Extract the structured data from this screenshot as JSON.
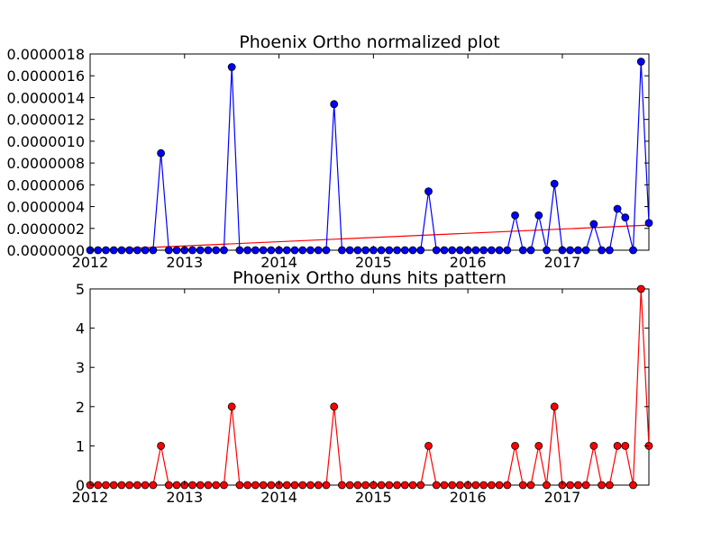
{
  "chart_data": [
    {
      "type": "line",
      "title": "Phoenix Ortho normalized plot",
      "xlabel": "",
      "ylabel": "",
      "x_ticks": [
        "2012",
        "2013",
        "2014",
        "2015",
        "2016",
        "2017"
      ],
      "xlim": [
        "2012-01",
        "2017-12"
      ],
      "ylim": [
        0,
        1.8e-06
      ],
      "y_ticks": [
        "0.0000000",
        "0.0000002",
        "0.0000004",
        "0.0000006",
        "0.0000008",
        "0.0000010",
        "0.0000012",
        "0.0000014",
        "0.0000016",
        "0.0000018"
      ],
      "grid": false,
      "colors": {
        "series": "#0000ff",
        "trend": "#ff0000"
      },
      "series": [
        {
          "x": [
            "2012-01",
            "2012-02",
            "2012-03",
            "2012-04",
            "2012-05",
            "2012-06",
            "2012-07",
            "2012-08",
            "2012-09",
            "2012-10",
            "2012-11",
            "2012-12",
            "2013-01",
            "2013-02",
            "2013-03",
            "2013-04",
            "2013-05",
            "2013-06",
            "2013-07",
            "2013-08",
            "2013-09",
            "2013-10",
            "2013-11",
            "2013-12",
            "2014-01",
            "2014-02",
            "2014-03",
            "2014-04",
            "2014-05",
            "2014-06",
            "2014-07",
            "2014-08",
            "2014-09",
            "2014-10",
            "2014-11",
            "2014-12",
            "2015-01",
            "2015-02",
            "2015-03",
            "2015-04",
            "2015-05",
            "2015-06",
            "2015-07",
            "2015-08",
            "2015-09",
            "2015-10",
            "2015-11",
            "2015-12",
            "2016-01",
            "2016-02",
            "2016-03",
            "2016-04",
            "2016-05",
            "2016-06",
            "2016-07",
            "2016-08",
            "2016-09",
            "2016-10",
            "2016-11",
            "2016-12",
            "2017-01",
            "2017-02",
            "2017-03",
            "2017-04",
            "2017-05",
            "2017-06",
            "2017-07",
            "2017-08",
            "2017-09",
            "2017-10",
            "2017-11",
            "2017-12"
          ],
          "values": [
            0,
            0,
            0,
            0,
            0,
            0,
            0,
            0,
            0,
            8.9e-07,
            0,
            0,
            0,
            0,
            0,
            0,
            0,
            0,
            1.68e-06,
            0,
            0,
            0,
            0,
            0,
            0,
            0,
            0,
            0,
            0,
            0,
            0,
            1.34e-06,
            0,
            0,
            0,
            0,
            0,
            0,
            0,
            0,
            0,
            0,
            0,
            5.4e-07,
            0,
            0,
            0,
            0,
            0,
            0,
            0,
            0,
            0,
            0,
            3.2e-07,
            0,
            0,
            3.2e-07,
            0,
            6.1e-07,
            0,
            0,
            0,
            0,
            2.4e-07,
            0,
            0,
            3.8e-07,
            3e-07,
            0,
            1.73e-06,
            2.5e-07
          ]
        }
      ],
      "trend": {
        "x": [
          "2012-01",
          "2017-12"
        ],
        "values": [
          0,
          2.3e-07
        ]
      }
    },
    {
      "type": "line",
      "title": "Phoenix Ortho duns hits pattern",
      "xlabel": "",
      "ylabel": "",
      "x_ticks": [
        "2012",
        "2013",
        "2014",
        "2015",
        "2016",
        "2017"
      ],
      "xlim": [
        "2012-01",
        "2017-12"
      ],
      "ylim": [
        0,
        5
      ],
      "y_ticks": [
        "0",
        "1",
        "2",
        "3",
        "4",
        "5"
      ],
      "grid": false,
      "colors": {
        "series": "#ff0000"
      },
      "series": [
        {
          "x": [
            "2012-01",
            "2012-02",
            "2012-03",
            "2012-04",
            "2012-05",
            "2012-06",
            "2012-07",
            "2012-08",
            "2012-09",
            "2012-10",
            "2012-11",
            "2012-12",
            "2013-01",
            "2013-02",
            "2013-03",
            "2013-04",
            "2013-05",
            "2013-06",
            "2013-07",
            "2013-08",
            "2013-09",
            "2013-10",
            "2013-11",
            "2013-12",
            "2014-01",
            "2014-02",
            "2014-03",
            "2014-04",
            "2014-05",
            "2014-06",
            "2014-07",
            "2014-08",
            "2014-09",
            "2014-10",
            "2014-11",
            "2014-12",
            "2015-01",
            "2015-02",
            "2015-03",
            "2015-04",
            "2015-05",
            "2015-06",
            "2015-07",
            "2015-08",
            "2015-09",
            "2015-10",
            "2015-11",
            "2015-12",
            "2016-01",
            "2016-02",
            "2016-03",
            "2016-04",
            "2016-05",
            "2016-06",
            "2016-07",
            "2016-08",
            "2016-09",
            "2016-10",
            "2016-11",
            "2016-12",
            "2017-01",
            "2017-02",
            "2017-03",
            "2017-04",
            "2017-05",
            "2017-06",
            "2017-07",
            "2017-08",
            "2017-09",
            "2017-10",
            "2017-11",
            "2017-12"
          ],
          "values": [
            0,
            0,
            0,
            0,
            0,
            0,
            0,
            0,
            0,
            1,
            0,
            0,
            0,
            0,
            0,
            0,
            0,
            0,
            2,
            0,
            0,
            0,
            0,
            0,
            0,
            0,
            0,
            0,
            0,
            0,
            0,
            2,
            0,
            0,
            0,
            0,
            0,
            0,
            0,
            0,
            0,
            0,
            0,
            1,
            0,
            0,
            0,
            0,
            0,
            0,
            0,
            0,
            0,
            0,
            1,
            0,
            0,
            1,
            0,
            2,
            0,
            0,
            0,
            0,
            1,
            0,
            0,
            1,
            1,
            0,
            5,
            1
          ]
        }
      ]
    }
  ]
}
